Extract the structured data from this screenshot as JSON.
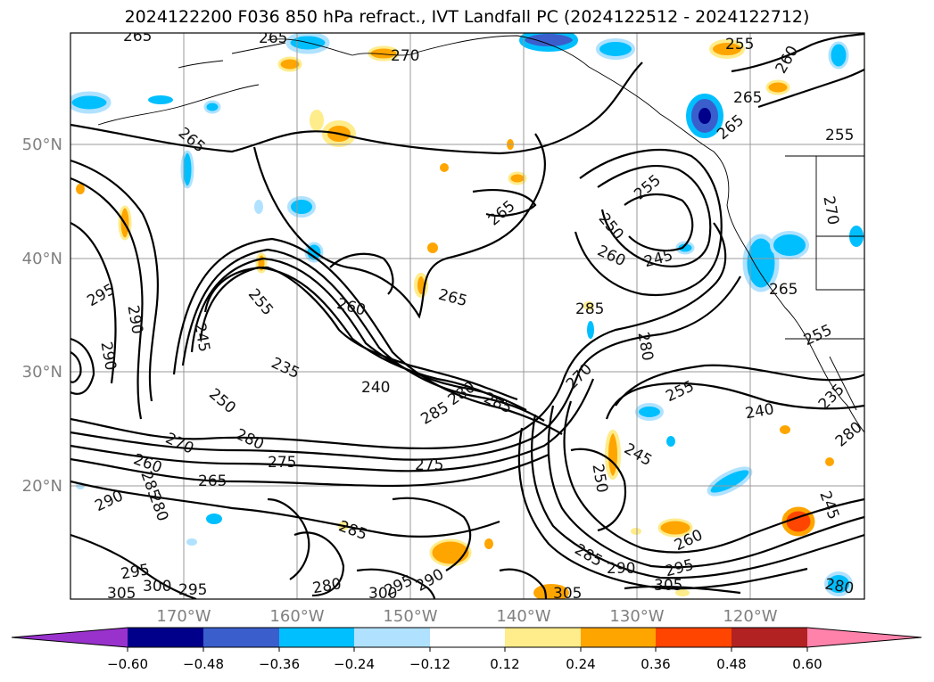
{
  "title": "2024122200 F036 850 hPa refract., IVT Landfall PC (2024122512 - 2024122712)",
  "map": {
    "lat_labels": [
      "50°N",
      "40°N",
      "30°N",
      "20°N"
    ],
    "lon_labels": [
      "170°W",
      "160°W",
      "150°W",
      "140°W",
      "130°W",
      "120°W"
    ],
    "contour_labels": [
      {
        "text": "265"
      },
      {
        "text": "265"
      },
      {
        "text": "270"
      },
      {
        "text": "255"
      },
      {
        "text": "260"
      },
      {
        "text": "265"
      },
      {
        "text": "265"
      },
      {
        "text": "265"
      },
      {
        "text": "255"
      },
      {
        "text": "270"
      },
      {
        "text": "265"
      },
      {
        "text": "255"
      },
      {
        "text": "250"
      },
      {
        "text": "260"
      },
      {
        "text": "245"
      },
      {
        "text": "285"
      },
      {
        "text": "265"
      },
      {
        "text": "260"
      },
      {
        "text": "255"
      },
      {
        "text": "265"
      },
      {
        "text": "295"
      },
      {
        "text": "290"
      },
      {
        "text": "290"
      },
      {
        "text": "245"
      },
      {
        "text": "235"
      },
      {
        "text": "240"
      },
      {
        "text": "250"
      },
      {
        "text": "285"
      },
      {
        "text": "280"
      },
      {
        "text": "270"
      },
      {
        "text": "280"
      },
      {
        "text": "285"
      },
      {
        "text": "255"
      },
      {
        "text": "255"
      },
      {
        "text": "235"
      },
      {
        "text": "240"
      },
      {
        "text": "270"
      },
      {
        "text": "280"
      },
      {
        "text": "275"
      },
      {
        "text": "260"
      },
      {
        "text": "265"
      },
      {
        "text": "275"
      },
      {
        "text": "245"
      },
      {
        "text": "250"
      },
      {
        "text": "285"
      },
      {
        "text": "290"
      },
      {
        "text": "280"
      },
      {
        "text": "245"
      },
      {
        "text": "260"
      },
      {
        "text": "285"
      },
      {
        "text": "285"
      },
      {
        "text": "290"
      },
      {
        "text": "295"
      },
      {
        "text": "295"
      },
      {
        "text": "305"
      },
      {
        "text": "300"
      },
      {
        "text": "295"
      },
      {
        "text": "280"
      },
      {
        "text": "300"
      },
      {
        "text": "295"
      },
      {
        "text": "290"
      },
      {
        "text": "305"
      },
      {
        "text": "305"
      },
      {
        "text": "280"
      },
      {
        "text": "280"
      }
    ]
  },
  "colorbar": {
    "ticks": [
      "−0.60",
      "−0.48",
      "−0.36",
      "−0.24",
      "−0.12",
      "0.12",
      "0.24",
      "0.36",
      "0.48",
      "0.60"
    ],
    "colors": [
      "#9932cc",
      "#00008b",
      "#3a5fcd",
      "#00bfff",
      "#b0e2ff",
      "#ffffff",
      "#ffec8b",
      "#ffa500",
      "#ff4500",
      "#b22222",
      "#ff82ab"
    ]
  }
}
